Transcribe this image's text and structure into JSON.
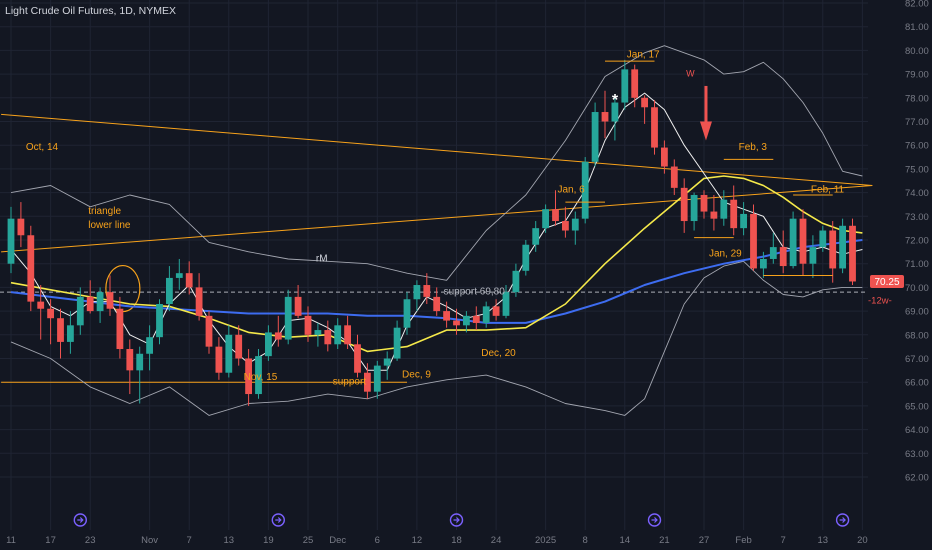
{
  "header": {
    "title": "Light Crude Oil Futures, 1D, NYMEX"
  },
  "colors": {
    "background": "#131722",
    "grid": "#1f2433",
    "up": "#26a69a",
    "down": "#ef5350",
    "bollinger": "#a3a6b0",
    "ma_fast": "#f0f0f0",
    "ma_yellow": "#f5e94a",
    "ma_blue": "#3d6cf0",
    "annotation": "#f7a21b",
    "axis_text": "#787b86",
    "white": "#ffffff"
  },
  "chart_data": {
    "type": "candlestick",
    "y_axis": {
      "min": 61.5,
      "max": 82.3,
      "ticks": [
        "62.00",
        "63.00",
        "64.00",
        "65.00",
        "66.00",
        "67.00",
        "68.00",
        "69.00",
        "70.00",
        "71.00",
        "72.00",
        "73.00",
        "74.00",
        "75.00",
        "76.00",
        "77.00",
        "78.00",
        "79.00",
        "80.00",
        "81.00",
        "82.00"
      ]
    },
    "x_axis": {
      "labels": [
        {
          "i": 0,
          "text": "11"
        },
        {
          "i": 4,
          "text": "17"
        },
        {
          "i": 8,
          "text": "23"
        },
        {
          "i": 14,
          "text": "Nov"
        },
        {
          "i": 18,
          "text": "7"
        },
        {
          "i": 22,
          "text": "13"
        },
        {
          "i": 26,
          "text": "19"
        },
        {
          "i": 30,
          "text": "25"
        },
        {
          "i": 33,
          "text": "Dec"
        },
        {
          "i": 37,
          "text": "6"
        },
        {
          "i": 41,
          "text": "12"
        },
        {
          "i": 45,
          "text": "18"
        },
        {
          "i": 49,
          "text": "24"
        },
        {
          "i": 54,
          "text": "2025"
        },
        {
          "i": 58,
          "text": "8"
        },
        {
          "i": 62,
          "text": "14"
        },
        {
          "i": 66,
          "text": "21"
        },
        {
          "i": 70,
          "text": "27"
        },
        {
          "i": 74,
          "text": "Feb"
        },
        {
          "i": 78,
          "text": "7"
        },
        {
          "i": 82,
          "text": "13"
        },
        {
          "i": 86,
          "text": "20"
        }
      ]
    },
    "candles": [
      {
        "o": 71.0,
        "h": 73.4,
        "l": 70.6,
        "c": 72.9
      },
      {
        "o": 72.9,
        "h": 73.6,
        "l": 71.7,
        "c": 72.2
      },
      {
        "o": 72.2,
        "h": 72.6,
        "l": 69.0,
        "c": 69.4
      },
      {
        "o": 69.4,
        "h": 70.1,
        "l": 67.8,
        "c": 69.1
      },
      {
        "o": 69.1,
        "h": 69.5,
        "l": 67.6,
        "c": 68.7
      },
      {
        "o": 68.7,
        "h": 69.1,
        "l": 67.0,
        "c": 67.7
      },
      {
        "o": 67.7,
        "h": 69.0,
        "l": 67.2,
        "c": 68.4
      },
      {
        "o": 68.4,
        "h": 70.0,
        "l": 68.0,
        "c": 69.6
      },
      {
        "o": 69.6,
        "h": 70.3,
        "l": 68.9,
        "c": 69.0
      },
      {
        "o": 69.0,
        "h": 70.0,
        "l": 68.5,
        "c": 69.8
      },
      {
        "o": 69.8,
        "h": 70.5,
        "l": 68.8,
        "c": 69.1
      },
      {
        "o": 69.1,
        "h": 69.6,
        "l": 67.0,
        "c": 67.4
      },
      {
        "o": 67.4,
        "h": 67.8,
        "l": 65.5,
        "c": 66.5
      },
      {
        "o": 66.5,
        "h": 67.5,
        "l": 65.1,
        "c": 67.2
      },
      {
        "o": 67.2,
        "h": 68.4,
        "l": 66.5,
        "c": 67.9
      },
      {
        "o": 67.9,
        "h": 69.5,
        "l": 67.6,
        "c": 69.3
      },
      {
        "o": 69.3,
        "h": 70.9,
        "l": 69.0,
        "c": 70.4
      },
      {
        "o": 70.4,
        "h": 71.2,
        "l": 69.9,
        "c": 70.6
      },
      {
        "o": 70.6,
        "h": 71.1,
        "l": 69.7,
        "c": 70.0
      },
      {
        "o": 70.0,
        "h": 70.6,
        "l": 68.6,
        "c": 68.8
      },
      {
        "o": 68.8,
        "h": 69.0,
        "l": 67.2,
        "c": 67.5
      },
      {
        "o": 67.5,
        "h": 67.9,
        "l": 66.1,
        "c": 66.4
      },
      {
        "o": 66.4,
        "h": 68.4,
        "l": 66.2,
        "c": 68.0
      },
      {
        "o": 68.0,
        "h": 68.4,
        "l": 66.7,
        "c": 67.0
      },
      {
        "o": 67.0,
        "h": 67.4,
        "l": 65.0,
        "c": 65.5
      },
      {
        "o": 65.5,
        "h": 67.4,
        "l": 65.3,
        "c": 67.1
      },
      {
        "o": 67.1,
        "h": 68.4,
        "l": 66.9,
        "c": 68.1
      },
      {
        "o": 68.1,
        "h": 68.8,
        "l": 67.5,
        "c": 67.8
      },
      {
        "o": 67.8,
        "h": 69.9,
        "l": 67.6,
        "c": 69.6
      },
      {
        "o": 69.6,
        "h": 70.1,
        "l": 68.7,
        "c": 68.8
      },
      {
        "o": 68.8,
        "h": 69.2,
        "l": 67.7,
        "c": 68.0
      },
      {
        "o": 68.0,
        "h": 68.5,
        "l": 67.5,
        "c": 68.2
      },
      {
        "o": 68.2,
        "h": 68.6,
        "l": 67.3,
        "c": 67.6
      },
      {
        "o": 67.6,
        "h": 68.7,
        "l": 67.4,
        "c": 68.4
      },
      {
        "o": 68.4,
        "h": 68.8,
        "l": 67.4,
        "c": 67.6
      },
      {
        "o": 67.6,
        "h": 68.0,
        "l": 66.2,
        "c": 66.4
      },
      {
        "o": 66.4,
        "h": 66.8,
        "l": 65.3,
        "c": 65.6
      },
      {
        "o": 65.6,
        "h": 66.9,
        "l": 65.3,
        "c": 66.7
      },
      {
        "o": 66.7,
        "h": 67.3,
        "l": 66.1,
        "c": 67.0
      },
      {
        "o": 67.0,
        "h": 68.6,
        "l": 66.9,
        "c": 68.3
      },
      {
        "o": 68.3,
        "h": 69.8,
        "l": 68.0,
        "c": 69.5
      },
      {
        "o": 69.5,
        "h": 70.3,
        "l": 69.0,
        "c": 70.1
      },
      {
        "o": 70.1,
        "h": 70.6,
        "l": 69.3,
        "c": 69.6
      },
      {
        "o": 69.6,
        "h": 70.0,
        "l": 68.8,
        "c": 69.0
      },
      {
        "o": 69.0,
        "h": 69.4,
        "l": 68.3,
        "c": 68.6
      },
      {
        "o": 68.6,
        "h": 69.1,
        "l": 68.0,
        "c": 68.4
      },
      {
        "o": 68.4,
        "h": 69.0,
        "l": 68.1,
        "c": 68.8
      },
      {
        "o": 68.8,
        "h": 69.2,
        "l": 68.2,
        "c": 68.5
      },
      {
        "o": 68.5,
        "h": 69.4,
        "l": 68.3,
        "c": 69.2
      },
      {
        "o": 69.2,
        "h": 69.5,
        "l": 68.6,
        "c": 68.8
      },
      {
        "o": 68.8,
        "h": 70.1,
        "l": 68.7,
        "c": 69.8
      },
      {
        "o": 69.8,
        "h": 71.0,
        "l": 69.6,
        "c": 70.7
      },
      {
        "o": 70.7,
        "h": 72.0,
        "l": 70.5,
        "c": 71.8
      },
      {
        "o": 71.8,
        "h": 72.8,
        "l": 71.5,
        "c": 72.5
      },
      {
        "o": 72.5,
        "h": 73.5,
        "l": 72.3,
        "c": 73.3
      },
      {
        "o": 73.3,
        "h": 74.1,
        "l": 72.6,
        "c": 72.8
      },
      {
        "o": 72.8,
        "h": 73.4,
        "l": 72.1,
        "c": 72.4
      },
      {
        "o": 72.4,
        "h": 73.2,
        "l": 71.8,
        "c": 72.9
      },
      {
        "o": 72.9,
        "h": 75.5,
        "l": 72.7,
        "c": 75.3
      },
      {
        "o": 75.3,
        "h": 77.8,
        "l": 75.1,
        "c": 77.4
      },
      {
        "o": 77.4,
        "h": 78.3,
        "l": 76.3,
        "c": 77.0
      },
      {
        "o": 77.0,
        "h": 78.0,
        "l": 76.2,
        "c": 77.8
      },
      {
        "o": 77.8,
        "h": 79.6,
        "l": 77.5,
        "c": 79.2
      },
      {
        "o": 79.2,
        "h": 79.4,
        "l": 77.6,
        "c": 78.0
      },
      {
        "o": 78.0,
        "h": 78.1,
        "l": 76.9,
        "c": 77.6
      },
      {
        "o": 77.6,
        "h": 77.9,
        "l": 75.6,
        "c": 75.9
      },
      {
        "o": 75.9,
        "h": 76.2,
        "l": 74.8,
        "c": 75.1
      },
      {
        "o": 75.1,
        "h": 75.4,
        "l": 73.9,
        "c": 74.2
      },
      {
        "o": 74.2,
        "h": 74.6,
        "l": 72.3,
        "c": 72.8
      },
      {
        "o": 72.8,
        "h": 74.0,
        "l": 72.4,
        "c": 73.9
      },
      {
        "o": 73.9,
        "h": 74.1,
        "l": 72.9,
        "c": 73.2
      },
      {
        "o": 73.2,
        "h": 73.9,
        "l": 72.4,
        "c": 72.9
      },
      {
        "o": 72.9,
        "h": 74.1,
        "l": 72.6,
        "c": 73.7
      },
      {
        "o": 73.7,
        "h": 74.3,
        "l": 72.2,
        "c": 72.5
      },
      {
        "o": 72.5,
        "h": 73.6,
        "l": 72.2,
        "c": 73.1
      },
      {
        "o": 73.1,
        "h": 73.5,
        "l": 70.7,
        "c": 70.8
      },
      {
        "o": 70.8,
        "h": 71.5,
        "l": 70.4,
        "c": 71.2
      },
      {
        "o": 71.2,
        "h": 72.3,
        "l": 71.0,
        "c": 71.7
      },
      {
        "o": 71.7,
        "h": 72.4,
        "l": 70.6,
        "c": 70.9
      },
      {
        "o": 70.9,
        "h": 73.2,
        "l": 70.8,
        "c": 72.9
      },
      {
        "o": 72.9,
        "h": 73.3,
        "l": 70.5,
        "c": 71.0
      },
      {
        "o": 71.0,
        "h": 72.2,
        "l": 70.4,
        "c": 71.7
      },
      {
        "o": 71.7,
        "h": 72.6,
        "l": 71.5,
        "c": 72.4
      },
      {
        "o": 72.4,
        "h": 72.8,
        "l": 70.2,
        "c": 70.8
      },
      {
        "o": 70.8,
        "h": 72.9,
        "l": 70.6,
        "c": 72.6
      },
      {
        "o": 72.6,
        "h": 72.9,
        "l": 70.1,
        "c": 70.25
      }
    ],
    "bollinger_upper": [
      [
        0,
        74.0
      ],
      [
        4,
        74.3
      ],
      [
        8,
        73.4
      ],
      [
        12,
        73.9
      ],
      [
        16,
        73.5
      ],
      [
        20,
        71.9
      ],
      [
        24,
        71.5
      ],
      [
        28,
        71.2
      ],
      [
        32,
        71.1
      ],
      [
        36,
        71.0
      ],
      [
        40,
        70.6
      ],
      [
        44,
        70.3
      ],
      [
        48,
        72.4
      ],
      [
        52,
        73.9
      ],
      [
        56,
        76.2
      ],
      [
        60,
        78.9
      ],
      [
        64,
        79.9
      ],
      [
        66,
        80.2
      ],
      [
        68,
        79.9
      ],
      [
        70,
        79.6
      ],
      [
        72,
        79.0
      ],
      [
        74,
        79.1
      ],
      [
        76,
        79.5
      ],
      [
        78,
        78.8
      ],
      [
        80,
        77.8
      ],
      [
        82,
        76.5
      ],
      [
        84,
        74.9
      ],
      [
        86,
        74.7
      ]
    ],
    "bollinger_lower": [
      [
        0,
        67.7
      ],
      [
        4,
        67.0
      ],
      [
        8,
        65.8
      ],
      [
        12,
        65.1
      ],
      [
        16,
        65.8
      ],
      [
        20,
        64.6
      ],
      [
        24,
        65.1
      ],
      [
        28,
        65.2
      ],
      [
        32,
        65.5
      ],
      [
        36,
        65.3
      ],
      [
        40,
        65.8
      ],
      [
        44,
        66.1
      ],
      [
        48,
        66.3
      ],
      [
        52,
        65.8
      ],
      [
        56,
        65.1
      ],
      [
        60,
        64.8
      ],
      [
        62,
        64.6
      ],
      [
        64,
        65.3
      ],
      [
        66,
        67.3
      ],
      [
        68,
        69.3
      ],
      [
        70,
        70.4
      ],
      [
        72,
        70.9
      ],
      [
        74,
        71.1
      ],
      [
        76,
        70.3
      ],
      [
        78,
        69.7
      ],
      [
        80,
        69.6
      ],
      [
        82,
        69.9
      ],
      [
        84,
        70.0
      ],
      [
        86,
        70.0
      ]
    ],
    "ma_fast": [
      [
        0,
        71.6
      ],
      [
        2,
        70.6
      ],
      [
        4,
        69.2
      ],
      [
        6,
        68.8
      ],
      [
        8,
        69.4
      ],
      [
        10,
        69.4
      ],
      [
        12,
        68.0
      ],
      [
        14,
        67.6
      ],
      [
        16,
        69.3
      ],
      [
        18,
        70.1
      ],
      [
        20,
        68.6
      ],
      [
        22,
        67.5
      ],
      [
        24,
        66.8
      ],
      [
        26,
        67.3
      ],
      [
        28,
        68.6
      ],
      [
        30,
        68.7
      ],
      [
        32,
        68.3
      ],
      [
        34,
        67.7
      ],
      [
        36,
        66.5
      ],
      [
        38,
        66.5
      ],
      [
        40,
        68.4
      ],
      [
        42,
        69.6
      ],
      [
        44,
        69.2
      ],
      [
        46,
        68.7
      ],
      [
        48,
        68.9
      ],
      [
        50,
        69.6
      ],
      [
        52,
        71.2
      ],
      [
        54,
        72.5
      ],
      [
        56,
        72.8
      ],
      [
        58,
        74.1
      ],
      [
        60,
        76.2
      ],
      [
        62,
        77.6
      ],
      [
        64,
        78.2
      ],
      [
        66,
        77.5
      ],
      [
        68,
        76.0
      ],
      [
        70,
        74.8
      ],
      [
        72,
        73.6
      ],
      [
        74,
        73.3
      ],
      [
        76,
        73.0
      ],
      [
        78,
        71.7
      ],
      [
        80,
        71.5
      ],
      [
        82,
        71.7
      ],
      [
        84,
        71.4
      ],
      [
        86,
        71.6
      ]
    ],
    "ma_yellow": [
      [
        0,
        70.2
      ],
      [
        4,
        69.9
      ],
      [
        8,
        69.6
      ],
      [
        12,
        69.3
      ],
      [
        16,
        69.2
      ],
      [
        20,
        68.7
      ],
      [
        24,
        68.1
      ],
      [
        28,
        67.9
      ],
      [
        32,
        68.0
      ],
      [
        36,
        67.3
      ],
      [
        40,
        67.5
      ],
      [
        44,
        68.2
      ],
      [
        48,
        68.2
      ],
      [
        52,
        68.3
      ],
      [
        56,
        69.3
      ],
      [
        60,
        71.0
      ],
      [
        64,
        72.5
      ],
      [
        68,
        73.9
      ],
      [
        70,
        74.6
      ],
      [
        72,
        74.7
      ],
      [
        74,
        74.6
      ],
      [
        76,
        74.3
      ],
      [
        78,
        73.8
      ],
      [
        80,
        73.2
      ],
      [
        82,
        72.7
      ],
      [
        84,
        72.4
      ],
      [
        86,
        72.3
      ]
    ],
    "ma_blue": [
      [
        0,
        69.8
      ],
      [
        4,
        69.6
      ],
      [
        8,
        69.4
      ],
      [
        12,
        69.2
      ],
      [
        16,
        69.1
      ],
      [
        20,
        69.0
      ],
      [
        24,
        68.9
      ],
      [
        28,
        68.9
      ],
      [
        32,
        68.9
      ],
      [
        36,
        68.8
      ],
      [
        40,
        68.8
      ],
      [
        44,
        68.7
      ],
      [
        48,
        68.5
      ],
      [
        52,
        68.5
      ],
      [
        56,
        68.9
      ],
      [
        60,
        69.4
      ],
      [
        64,
        70.1
      ],
      [
        68,
        70.6
      ],
      [
        72,
        71.0
      ],
      [
        76,
        71.3
      ],
      [
        80,
        71.7
      ],
      [
        84,
        71.9
      ],
      [
        86,
        72.0
      ]
    ],
    "lines": [
      {
        "name": "upper-trendline",
        "from": [
          -1,
          77.3
        ],
        "to": [
          87,
          74.3
        ],
        "color": "annotation"
      },
      {
        "name": "triangle-lower-line",
        "from": [
          -1,
          71.5
        ],
        "to": [
          87,
          74.3
        ],
        "color": "annotation"
      },
      {
        "name": "support-line",
        "from": [
          -1,
          66.0
        ],
        "to": [
          40,
          66.0
        ],
        "color": "annotation"
      }
    ],
    "annotations": [
      {
        "text": "Oct, 14",
        "i": 1.5,
        "y": 75.8
      },
      {
        "text": "triangle",
        "i": 7.8,
        "y": 73.1
      },
      {
        "text": "lower line",
        "i": 7.8,
        "y": 72.5
      },
      {
        "text": "rM",
        "i": 30.8,
        "y": 71.1
      },
      {
        "text": "support 69,80",
        "i": 43.7,
        "y": 69.7
      },
      {
        "text": "Nov, 15",
        "i": 23.5,
        "y": 66.1
      },
      {
        "text": "support",
        "i": 32.5,
        "y": 65.9
      },
      {
        "text": "Dec, 9",
        "i": 39.5,
        "y": 66.2
      },
      {
        "text": "Dec, 20",
        "i": 47.5,
        "y": 67.1
      },
      {
        "text": "Jan, 6",
        "i": 55.2,
        "y": 74.0
      },
      {
        "text": "Jan, 17",
        "i": 62.2,
        "y": 79.7
      },
      {
        "text": "W",
        "i": 68.2,
        "y": 78.9
      },
      {
        "text": "Feb, 3",
        "i": 73.5,
        "y": 75.8
      },
      {
        "text": "Jan, 29",
        "i": 70.5,
        "y": 71.3
      },
      {
        "text": "Feb, 11",
        "i": 80.8,
        "y": 74.0
      }
    ],
    "last_price": {
      "value": "70.25",
      "countdown": "-12w-"
    }
  }
}
